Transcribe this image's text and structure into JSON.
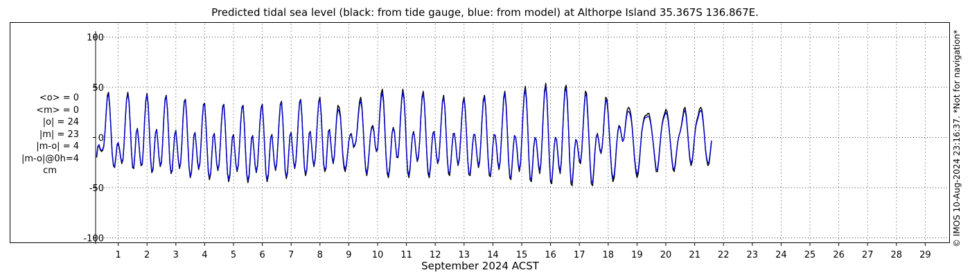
{
  "chart_title": "Predicted tidal sea level (black: from tide gauge, blue: from model) at Althorpe Island 35.367S 136.867E.",
  "stats": {
    "mean_obs": "<o> = 0",
    "mean_model": "<m> = 0",
    "abs_obs": "|o| = 24",
    "abs_model": "|m| = 23",
    "abs_diff": "|m-o| = 4",
    "diff_0h": "|m-o|@0h=4",
    "unit": "cm"
  },
  "side_note": "© IMOS 10-Aug-2024 23:16:37. *Not for navigation*",
  "chart_data": {
    "type": "line",
    "title": "Predicted tidal sea level (black: from tide gauge, blue: from model) at Althorpe Island 35.367S 136.867E.",
    "xlabel": "September 2024 ACST",
    "ylabel": "",
    "xlim": [
      0,
      30
    ],
    "ylim": [
      -110,
      110
    ],
    "y_ticks": [
      -100,
      -50,
      0,
      50,
      100
    ],
    "x_ticks": [
      1,
      2,
      3,
      4,
      5,
      6,
      7,
      8,
      9,
      10,
      11,
      12,
      13,
      14,
      15,
      16,
      17,
      18,
      19,
      20,
      21,
      22,
      23,
      24,
      25,
      26,
      27,
      28,
      29
    ],
    "grid": true,
    "colors": {
      "observed": "#000000",
      "model": "#0000dd",
      "grid": "#888888"
    },
    "sampling": "one value per hour starting day 0.25 (hourly tidal oscillation); semidiurnal ~12.4 h period",
    "series": [
      {
        "name": "black: from tide gauge",
        "color": "#000000",
        "x_start": 0.25,
        "x_step": 0.041667,
        "values": [
          -20,
          -10,
          -8,
          -12,
          -14,
          -13,
          -9,
          5,
          26,
          42,
          45,
          30,
          8,
          -16,
          -28,
          -30,
          -21,
          -8,
          -6,
          -11,
          -20,
          -26,
          -22,
          -4,
          20,
          38,
          45,
          36,
          14,
          -14,
          -30,
          -31,
          -15,
          5,
          9,
          -2,
          -18,
          -28,
          -27,
          -10,
          17,
          37,
          44,
          33,
          6,
          -22,
          -35,
          -32,
          -14,
          4,
          8,
          -4,
          -20,
          -29,
          -25,
          -6,
          20,
          38,
          42,
          28,
          2,
          -25,
          -36,
          -33,
          -15,
          3,
          7,
          -6,
          -22,
          -31,
          -26,
          -6,
          20,
          36,
          38,
          22,
          -5,
          -30,
          -40,
          -35,
          -17,
          2,
          5,
          -8,
          -24,
          -32,
          -26,
          -6,
          18,
          33,
          34,
          16,
          -10,
          -34,
          -42,
          -36,
          -17,
          1,
          4,
          -10,
          -26,
          -33,
          -27,
          -8,
          16,
          31,
          33,
          15,
          -12,
          -36,
          -44,
          -38,
          -18,
          0,
          3,
          -11,
          -27,
          -34,
          -28,
          -8,
          15,
          30,
          32,
          14,
          -13,
          -37,
          -45,
          -39,
          -19,
          -1,
          2,
          -12,
          -28,
          -35,
          -28,
          -8,
          15,
          30,
          33,
          15,
          -12,
          -36,
          -44,
          -38,
          -18,
          0,
          3,
          -11,
          -26,
          -33,
          -26,
          -6,
          17,
          33,
          36,
          19,
          -8,
          -33,
          -41,
          -35,
          -16,
          2,
          5,
          -9,
          -24,
          -31,
          -24,
          -4,
          19,
          35,
          38,
          21,
          -6,
          -30,
          -38,
          -33,
          -14,
          4,
          6,
          -7,
          -22,
          -29,
          -22,
          -2,
          20,
          36,
          40,
          24,
          -2,
          -26,
          -34,
          -31,
          -12,
          6,
          8,
          -5,
          -19,
          -26,
          -19,
          2,
          22,
          32,
          30,
          22,
          4,
          -18,
          -30,
          -34,
          -28,
          -16,
          -4,
          2,
          4,
          -2,
          -10,
          -8,
          -4,
          8,
          24,
          36,
          40,
          30,
          10,
          -14,
          -32,
          -38,
          -30,
          -14,
          2,
          10,
          12,
          6,
          -8,
          -14,
          -12,
          6,
          28,
          44,
          48,
          36,
          10,
          -18,
          -36,
          -40,
          -32,
          -14,
          4,
          10,
          6,
          -8,
          -20,
          -20,
          -6,
          18,
          38,
          48,
          40,
          18,
          -12,
          -34,
          -40,
          -32,
          -14,
          2,
          6,
          -2,
          -16,
          -24,
          -20,
          -4,
          20,
          40,
          46,
          34,
          10,
          -18,
          -36,
          -40,
          -30,
          -10,
          4,
          6,
          -4,
          -18,
          -26,
          -22,
          -4,
          18,
          36,
          42,
          30,
          6,
          -20,
          -36,
          -38,
          -26,
          -8,
          4,
          4,
          -6,
          -20,
          -28,
          -22,
          -4,
          18,
          35,
          40,
          28,
          4,
          -22,
          -37,
          -38,
          -26,
          -8,
          3,
          3,
          -8,
          -22,
          -30,
          -24,
          -4,
          19,
          37,
          42,
          30,
          5,
          -22,
          -38,
          -39,
          -26,
          -8,
          3,
          2,
          -9,
          -24,
          -32,
          -25,
          -4,
          20,
          40,
          46,
          33,
          7,
          -22,
          -40,
          -42,
          -28,
          -9,
          2,
          0,
          -11,
          -26,
          -34,
          -26,
          -4,
          22,
          43,
          51,
          38,
          10,
          -22,
          -42,
          -44,
          -30,
          -10,
          0,
          -2,
          -14,
          -29,
          -36,
          -26,
          -2,
          25,
          46,
          54,
          40,
          12,
          -22,
          -44,
          -46,
          -30,
          -10,
          0,
          -2,
          -16,
          -30,
          -36,
          -24,
          2,
          30,
          48,
          52,
          36,
          8,
          -24,
          -46,
          -48,
          -32,
          -12,
          -2,
          -4,
          -14,
          -24,
          -26,
          -14,
          8,
          30,
          46,
          44,
          24,
          -2,
          -28,
          -46,
          -48,
          -34,
          -14,
          0,
          4,
          -2,
          -12,
          -16,
          -10,
          6,
          26,
          40,
          38,
          24,
          4,
          -18,
          -36,
          -44,
          -40,
          -26,
          -8,
          6,
          12,
          10,
          2,
          -4,
          -2,
          8,
          20,
          28,
          30,
          28,
          22,
          10,
          -6,
          -22,
          -34,
          -40,
          -36,
          -24,
          -8,
          6,
          14,
          20,
          22,
          22,
          24,
          24,
          18,
          10,
          0,
          -12,
          -24,
          -34,
          -34,
          -24,
          -10,
          4,
          14,
          20,
          24,
          28,
          26,
          18,
          6,
          -8,
          -22,
          -32,
          -34,
          -26,
          -14,
          -4,
          2,
          6,
          12,
          20,
          28,
          30,
          22,
          8,
          -8,
          -22,
          -28,
          -24,
          -12,
          2,
          12,
          18,
          22,
          28,
          30,
          28,
          18,
          4,
          -12,
          -22,
          -28,
          -26,
          -16,
          -4
        ]
      },
      {
        "name": "blue: from model",
        "color": "#0000dd",
        "x_start": 0.25,
        "x_step": 0.041667,
        "values": [
          -18,
          -9,
          -7,
          -11,
          -13,
          -12,
          -8,
          5,
          25,
          40,
          43,
          29,
          7,
          -15,
          -27,
          -29,
          -20,
          -7,
          -5,
          -10,
          -19,
          -25,
          -21,
          -4,
          19,
          37,
          43,
          35,
          13,
          -13,
          -29,
          -30,
          -14,
          5,
          8,
          -2,
          -17,
          -27,
          -26,
          -9,
          16,
          36,
          43,
          32,
          6,
          -21,
          -34,
          -31,
          -13,
          4,
          7,
          -4,
          -19,
          -28,
          -24,
          -6,
          19,
          37,
          41,
          27,
          2,
          -24,
          -35,
          -32,
          -14,
          3,
          6,
          -6,
          -21,
          -30,
          -25,
          -6,
          19,
          35,
          37,
          21,
          -5,
          -29,
          -39,
          -34,
          -16,
          2,
          4,
          -8,
          -23,
          -31,
          -25,
          -6,
          17,
          32,
          33,
          15,
          -10,
          -33,
          -40,
          -35,
          -16,
          1,
          3,
          -10,
          -25,
          -32,
          -26,
          -8,
          15,
          30,
          32,
          14,
          -12,
          -35,
          -42,
          -36,
          -17,
          0,
          2,
          -11,
          -26,
          -33,
          -27,
          -8,
          14,
          29,
          31,
          13,
          -13,
          -36,
          -43,
          -37,
          -18,
          -1,
          1,
          -12,
          -27,
          -34,
          -27,
          -8,
          14,
          29,
          32,
          14,
          -12,
          -35,
          -42,
          -36,
          -17,
          0,
          2,
          -11,
          -25,
          -32,
          -25,
          -6,
          16,
          32,
          35,
          18,
          -8,
          -32,
          -39,
          -34,
          -15,
          2,
          4,
          -9,
          -23,
          -30,
          -23,
          -4,
          18,
          34,
          37,
          20,
          -6,
          -29,
          -36,
          -32,
          -13,
          4,
          5,
          -7,
          -21,
          -28,
          -21,
          -2,
          19,
          35,
          38,
          23,
          -2,
          -25,
          -32,
          -30,
          -11,
          6,
          7,
          -5,
          -18,
          -25,
          -18,
          1,
          20,
          28,
          26,
          20,
          4,
          -16,
          -27,
          -32,
          -27,
          -15,
          -4,
          2,
          3,
          -2,
          -9,
          -7,
          -4,
          7,
          22,
          33,
          36,
          28,
          9,
          -13,
          -30,
          -36,
          -28,
          -13,
          2,
          9,
          10,
          5,
          -8,
          -13,
          -11,
          6,
          26,
          40,
          44,
          33,
          9,
          -17,
          -34,
          -38,
          -30,
          -13,
          4,
          9,
          5,
          -8,
          -19,
          -19,
          -6,
          17,
          36,
          45,
          38,
          17,
          -12,
          -32,
          -38,
          -30,
          -13,
          2,
          5,
          -2,
          -15,
          -23,
          -19,
          -4,
          19,
          38,
          44,
          33,
          10,
          -17,
          -34,
          -38,
          -28,
          -9,
          4,
          5,
          -4,
          -17,
          -25,
          -21,
          -4,
          17,
          35,
          40,
          29,
          6,
          -19,
          -34,
          -36,
          -25,
          -8,
          3,
          4,
          -6,
          -19,
          -27,
          -21,
          -4,
          17,
          34,
          38,
          27,
          4,
          -21,
          -35,
          -36,
          -25,
          -8,
          3,
          3,
          -8,
          -21,
          -28,
          -23,
          -4,
          18,
          35,
          40,
          29,
          5,
          -21,
          -36,
          -37,
          -25,
          -8,
          3,
          2,
          -8,
          -23,
          -30,
          -24,
          -4,
          19,
          38,
          44,
          31,
          7,
          -21,
          -38,
          -40,
          -27,
          -9,
          2,
          0,
          -10,
          -25,
          -32,
          -25,
          -4,
          21,
          41,
          48,
          36,
          10,
          -21,
          -40,
          -42,
          -28,
          -9,
          0,
          -2,
          -13,
          -27,
          -34,
          -25,
          -2,
          23,
          44,
          51,
          38,
          11,
          -21,
          -42,
          -44,
          -28,
          -9,
          0,
          -2,
          -14,
          -28,
          -34,
          -23,
          2,
          28,
          45,
          49,
          34,
          8,
          -22,
          -43,
          -45,
          -30,
          -11,
          -2,
          -4,
          -13,
          -22,
          -24,
          -13,
          7,
          28,
          43,
          41,
          22,
          -2,
          -26,
          -43,
          -45,
          -32,
          -13,
          0,
          3,
          -2,
          -11,
          -15,
          -9,
          5,
          24,
          37,
          35,
          22,
          4,
          -17,
          -34,
          -41,
          -37,
          -24,
          -7,
          5,
          11,
          9,
          2,
          -4,
          -2,
          7,
          18,
          25,
          26,
          24,
          19,
          9,
          -5,
          -20,
          -31,
          -37,
          -33,
          -22,
          -7,
          5,
          13,
          18,
          20,
          20,
          21,
          21,
          16,
          9,
          0,
          -11,
          -22,
          -32,
          -32,
          -22,
          -9,
          4,
          13,
          18,
          22,
          25,
          23,
          16,
          5,
          -7,
          -20,
          -30,
          -32,
          -24,
          -13,
          -4,
          2,
          6,
          11,
          18,
          25,
          27,
          20,
          7,
          -7,
          -20,
          -26,
          -22,
          -11,
          2,
          11,
          16,
          20,
          25,
          27,
          25,
          16,
          4,
          -11,
          -20,
          -26,
          -24,
          -14,
          -3
        ]
      }
    ]
  }
}
